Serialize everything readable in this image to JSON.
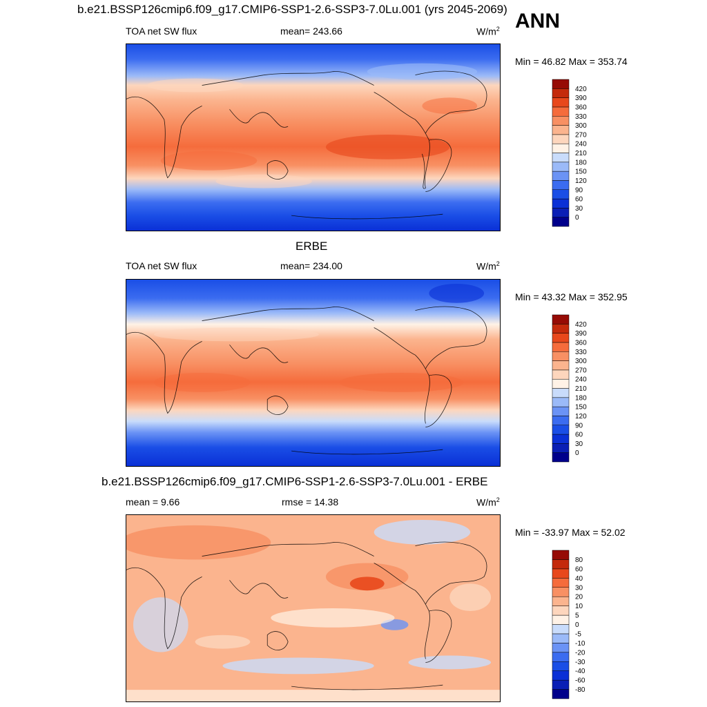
{
  "season": "ANN",
  "units_base": "W/m",
  "units_exp": "2",
  "chart_data": [
    {
      "type": "heatmap",
      "title": "b.e21.BSSP126cmip6.f09_g17.CMIP6-SSP1-2.6-SSP3-7.0Lu.001 (yrs 2045-2069)",
      "left_label": "TOA net SW flux",
      "center_label": "mean= 243.66",
      "minmax_label": "Min =  46.82 Max = 353.74",
      "colorbar_levels": [
        "0",
        "30",
        "60",
        "90",
        "120",
        "150",
        "180",
        "210",
        "240",
        "270",
        "300",
        "330",
        "360",
        "390",
        "420"
      ],
      "colorbar_colors": [
        "#00008b",
        "#0a1fb5",
        "#0a30d6",
        "#1a4ee6",
        "#3b6cf0",
        "#6b93f5",
        "#9bbaf8",
        "#c9dcfb",
        "#fff2e6",
        "#fdd6bd",
        "#fbb48e",
        "#f89063",
        "#f56c3c",
        "#e8481c",
        "#c42a0c",
        "#960b05"
      ],
      "data_range": [
        46.82,
        353.74
      ]
    },
    {
      "type": "heatmap",
      "title": "ERBE",
      "left_label": "TOA net SW flux",
      "center_label": "mean= 234.00",
      "minmax_label": "Min =  43.32 Max = 352.95",
      "colorbar_levels": [
        "0",
        "30",
        "60",
        "90",
        "120",
        "150",
        "180",
        "210",
        "240",
        "270",
        "300",
        "330",
        "360",
        "390",
        "420"
      ],
      "colorbar_colors": [
        "#00008b",
        "#0a1fb5",
        "#0a30d6",
        "#1a4ee6",
        "#3b6cf0",
        "#6b93f5",
        "#9bbaf8",
        "#c9dcfb",
        "#fff2e6",
        "#fdd6bd",
        "#fbb48e",
        "#f89063",
        "#f56c3c",
        "#e8481c",
        "#c42a0c",
        "#960b05"
      ],
      "data_range": [
        43.32,
        352.95
      ]
    },
    {
      "type": "heatmap",
      "title": "b.e21.BSSP126cmip6.f09_g17.CMIP6-SSP1-2.6-SSP3-7.0Lu.001 - ERBE",
      "left_label": "mean =   9.66",
      "center_label": "rmse =  14.38",
      "minmax_label": "Min = -33.97 Max =  52.02",
      "colorbar_levels": [
        "-80",
        "-60",
        "-40",
        "-30",
        "-20",
        "-10",
        "-5",
        "0",
        "5",
        "10",
        "20",
        "30",
        "40",
        "60",
        "80"
      ],
      "colorbar_colors": [
        "#00008b",
        "#0a1fb5",
        "#0a30d6",
        "#1a4ee6",
        "#3b6cf0",
        "#6b93f5",
        "#9bbaf8",
        "#c9dcfb",
        "#fff2e6",
        "#fdd6bd",
        "#fbb48e",
        "#f89063",
        "#f56c3c",
        "#e8481c",
        "#c42a0c",
        "#960b05"
      ],
      "data_range": [
        -33.97,
        52.02
      ]
    }
  ]
}
